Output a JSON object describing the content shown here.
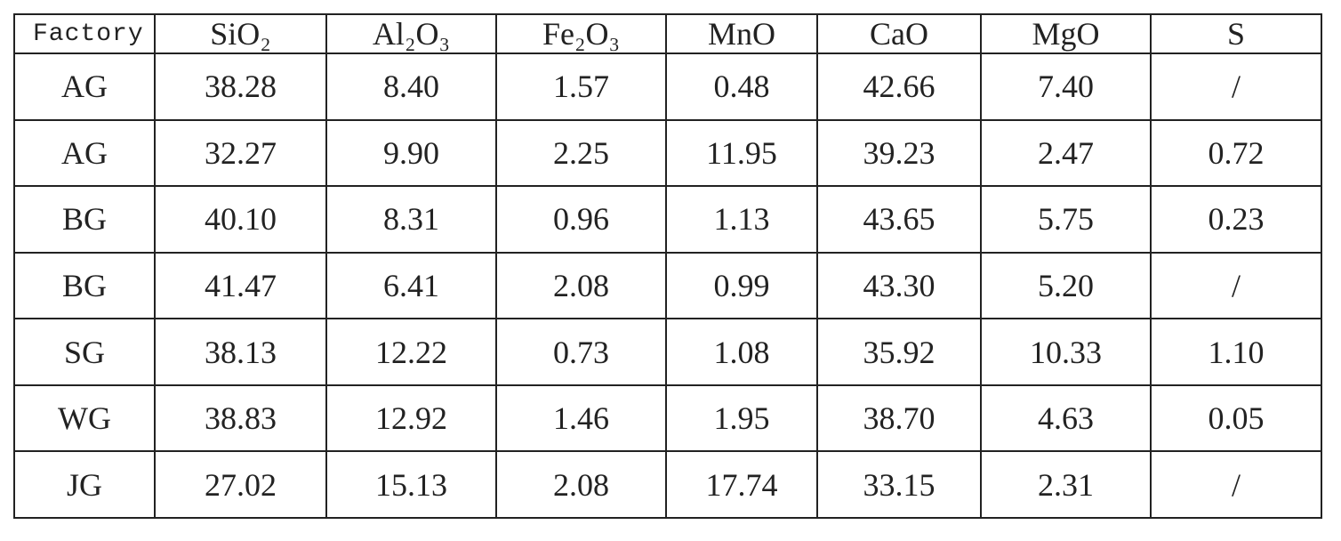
{
  "table": {
    "header": [
      "Factory",
      "SiO₂",
      "Al₂O₃",
      "Fe₂O₃",
      "MnO",
      "CaO",
      "MgO",
      "S"
    ],
    "rows": [
      [
        "AG",
        "38.28",
        "8.40",
        "1.57",
        "0.48",
        "42.66",
        "7.40",
        "/"
      ],
      [
        "AG",
        "32.27",
        "9.90",
        "2.25",
        "11.95",
        "39.23",
        "2.47",
        "0.72"
      ],
      [
        "BG",
        "40.10",
        "8.31",
        "0.96",
        "1.13",
        "43.65",
        "5.75",
        "0.23"
      ],
      [
        "BG",
        "41.47",
        "6.41",
        "2.08",
        "0.99",
        "43.30",
        "5.20",
        "/"
      ],
      [
        "SG",
        "38.13",
        "12.22",
        "0.73",
        "1.08",
        "35.92",
        "10.33",
        "1.10"
      ],
      [
        "WG",
        "38.83",
        "12.92",
        "1.46",
        "1.95",
        "38.70",
        "4.63",
        "0.05"
      ],
      [
        "JG",
        "27.02",
        "15.13",
        "2.08",
        "17.74",
        "33.15",
        "2.31",
        "/"
      ]
    ]
  }
}
